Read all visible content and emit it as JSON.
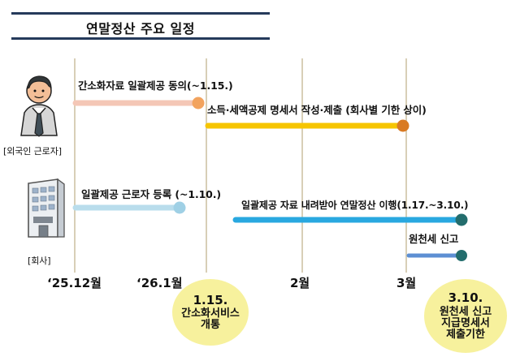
{
  "title": "연말정산 주요 일정",
  "actors": {
    "worker": "[외국인 근로자]",
    "company": "[회사]"
  },
  "timeline": {
    "months": [
      "‘25.12월",
      "‘26.1월",
      "2월",
      "3월"
    ],
    "events": [
      {
        "label": "간소화자료 일괄제공 동의(~1.15.)"
      },
      {
        "label": "소득·세액공제 명세서 작성·제출 (회사별 기한 상이)"
      },
      {
        "label": "일괄제공 근로자 등록 (~1.10.)"
      },
      {
        "label": "일괄제공 자료 내려받아  연말정산 이행(1.17.~3.10.)"
      },
      {
        "label": "원천세 신고"
      }
    ]
  },
  "highlights": [
    {
      "date": "1.15.",
      "text": [
        "간소화서비스",
        "개통"
      ]
    },
    {
      "date": "3.10.",
      "text": [
        "원천세 신고",
        "지급명세서",
        "제출기한"
      ]
    }
  ],
  "colors": {
    "title_rule": "#253a5b",
    "guide_line": "#d8cfb7",
    "worker_bar_1": "#f4c7b6",
    "worker_dot_1": "#f2a35e",
    "worker_bar_2": "#f6c500",
    "worker_dot_2": "#d97a22",
    "company_bar_1": "#b9ddec",
    "company_dot_1": "#9fd0e5",
    "company_bar_2": "#29a8e0",
    "company_bar_3": "#5d8fd3",
    "company_dot_dark": "#236d6d",
    "highlight_bg": "#f7f19d"
  }
}
